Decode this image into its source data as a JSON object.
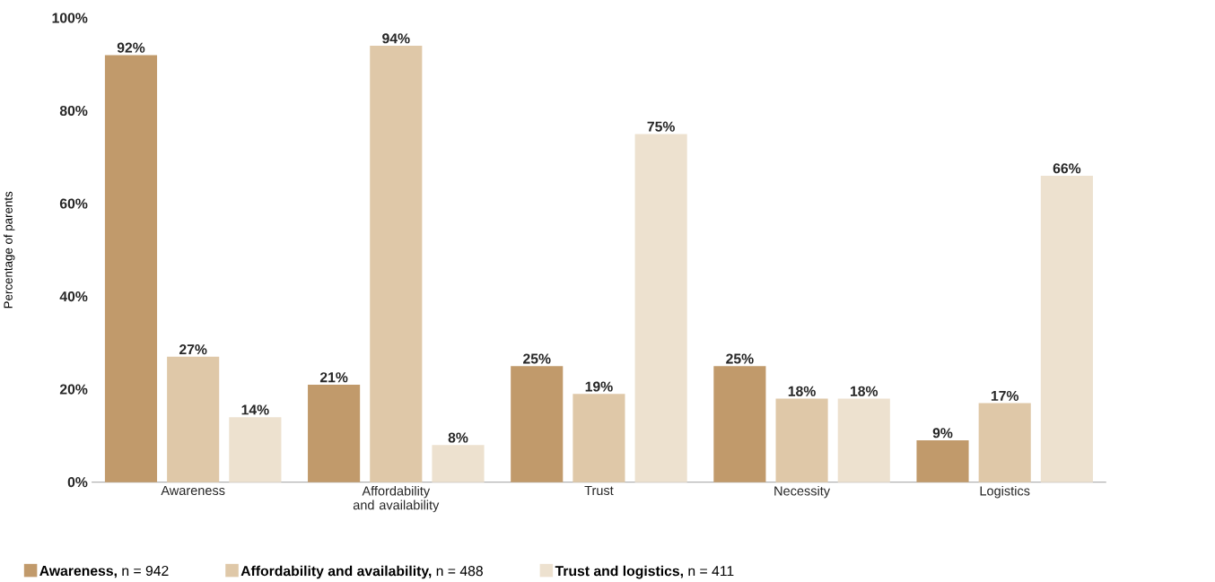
{
  "chart_data": {
    "type": "bar",
    "ylabel": "Percentage of parents",
    "categories": [
      "Awareness",
      "Affordability and availability",
      "Trust",
      "Necessity",
      "Logistics"
    ],
    "series": [
      {
        "name": "**Awareness,** n = 942",
        "color": "#c19a6b",
        "values": [
          92,
          21,
          25,
          25,
          9
        ],
        "value_labels": [
          "92%",
          "21%",
          "25%",
          "25%",
          "9%"
        ]
      },
      {
        "name": "**Affordability and availability,** n = 488",
        "color": "#dfc8a8",
        "values": [
          27,
          94,
          19,
          18,
          17
        ],
        "value_labels": [
          "27%",
          "94%",
          "19%",
          "18%",
          "17%"
        ]
      },
      {
        "name": "**Trust and logistics,** n = 411",
        "color": "#ede1cf",
        "values": [
          14,
          8,
          75,
          18,
          66
        ],
        "value_labels": [
          "14%",
          "8%",
          "75%",
          "18%",
          "66%"
        ]
      }
    ],
    "ylim": [
      0,
      100
    ],
    "yticks": [
      {
        "value": 0,
        "label": "0%"
      },
      {
        "value": 20,
        "label": "20%"
      },
      {
        "value": 40,
        "label": "40%"
      },
      {
        "value": 60,
        "label": "60%"
      },
      {
        "value": 80,
        "label": "80%"
      },
      {
        "value": 100,
        "label": "100%"
      }
    ],
    "legend": "bottom",
    "grid": false
  }
}
